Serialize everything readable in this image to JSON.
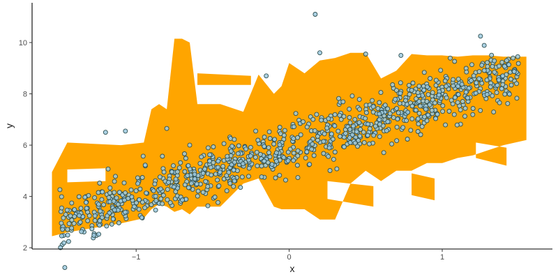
{
  "chart_data": {
    "type": "scatter",
    "title": "",
    "xlabel": "x",
    "ylabel": "y",
    "xlim": [
      -1.68,
      1.72
    ],
    "ylim": [
      1.95,
      11.55
    ],
    "x_ticks": [
      -1,
      0,
      1
    ],
    "x_tick_labels": [
      "−1",
      "0",
      "1"
    ],
    "y_ticks": [
      2,
      4,
      6,
      8,
      10
    ],
    "y_tick_labels": [
      "2",
      "4",
      "6",
      "8",
      "10"
    ],
    "grid": false,
    "legend": "none",
    "colors": {
      "band_fill": "#FFA500",
      "point_fill": "#9ecae1",
      "point_stroke": "#2f4f4f",
      "axis": "#000000"
    },
    "ribbon": {
      "x": [
        -1.55,
        -1.45,
        -1.1,
        -0.95,
        -0.9,
        -0.85,
        -0.8,
        -0.75,
        -0.7,
        -0.65,
        -0.6,
        -0.55,
        -0.45,
        -0.3,
        -0.2,
        -0.1,
        -0.05,
        0.0,
        0.1,
        0.2,
        0.3,
        0.4,
        0.5,
        0.6,
        0.7,
        0.8,
        0.9,
        1.0,
        1.1,
        1.2,
        1.3,
        1.4,
        1.55
      ],
      "ymin": [
        2.45,
        2.6,
        2.95,
        3.15,
        3.5,
        3.7,
        3.6,
        3.4,
        3.5,
        3.3,
        3.6,
        3.6,
        3.6,
        4.5,
        4.7,
        3.6,
        3.5,
        3.5,
        3.5,
        3.1,
        3.1,
        4.5,
        5.0,
        4.6,
        5.0,
        5.0,
        5.3,
        5.3,
        5.5,
        5.6,
        5.8,
        6.0,
        6.2
      ],
      "ymax": [
        4.95,
        6.1,
        6.0,
        6.1,
        7.4,
        7.6,
        7.4,
        10.15,
        10.15,
        10.0,
        7.6,
        7.6,
        7.6,
        7.3,
        8.75,
        8.0,
        8.3,
        9.2,
        8.8,
        9.3,
        9.4,
        9.6,
        9.6,
        8.6,
        8.9,
        9.55,
        9.5,
        9.5,
        9.45,
        9.5,
        9.5,
        9.45,
        9.45
      ]
    },
    "holes": [
      {
        "x": [
          -1.45,
          -1.2
        ],
        "top": [
          5.05,
          5.1
        ],
        "bottom": [
          4.55,
          4.6
        ]
      },
      {
        "x": [
          -0.6,
          -0.25
        ],
        "top": [
          8.8,
          8.7
        ],
        "bottom": [
          8.35,
          8.35
        ]
      },
      {
        "x": [
          0.25,
          0.55
        ],
        "top": [
          4.6,
          4.4
        ],
        "bottom": [
          3.9,
          3.6
        ]
      },
      {
        "x": [
          0.8,
          0.95
        ],
        "top": [
          4.9,
          4.7
        ],
        "bottom": [
          4.05,
          3.85
        ]
      },
      {
        "x": [
          1.22,
          1.42
        ],
        "top": [
          6.1,
          5.9
        ],
        "bottom": [
          5.5,
          5.2
        ]
      }
    ],
    "points_model": {
      "n": 1000,
      "x_range": [
        -1.5,
        1.5
      ],
      "intercept": 5.9,
      "slope": 2.0,
      "noise_sd": 0.5
    },
    "outliers": [
      {
        "x": 0.17,
        "y": 11.1
      },
      {
        "x": 1.25,
        "y": 10.25
      },
      {
        "x": 0.2,
        "y": 9.6
      },
      {
        "x": 0.5,
        "y": 9.55
      },
      {
        "x": 0.73,
        "y": 9.5
      },
      {
        "x": -0.15,
        "y": 8.7
      },
      {
        "x": -1.2,
        "y": 6.5
      },
      {
        "x": -1.07,
        "y": 6.55
      },
      {
        "x": -0.8,
        "y": 6.65
      },
      {
        "x": -0.65,
        "y": 6.0
      }
    ]
  }
}
